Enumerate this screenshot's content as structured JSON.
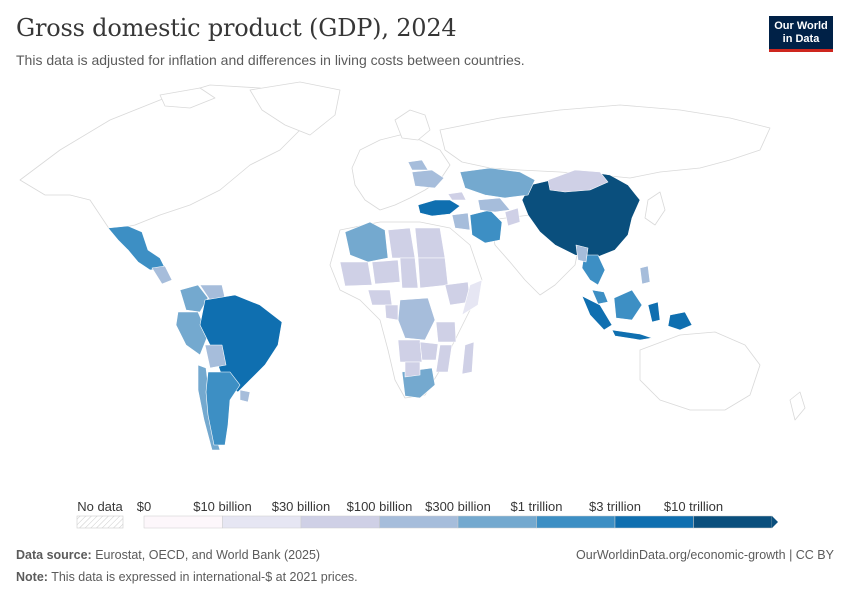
{
  "header": {
    "title": "Gross domestic product (GDP), 2024",
    "subtitle": "This data is adjusted for inflation and differences in living costs between countries.",
    "logo_line1": "Our World",
    "logo_line2": "in Data"
  },
  "legend": {
    "no_data_label": "No data",
    "bins": [
      {
        "label": "$0",
        "color": "#fdf7fb"
      },
      {
        "label": "$10 billion",
        "color": "#e6e6f3"
      },
      {
        "label": "$30 billion",
        "color": "#cfd0e6"
      },
      {
        "label": "$100 billion",
        "color": "#a6bddb"
      },
      {
        "label": "$300 billion",
        "color": "#74a9cf"
      },
      {
        "label": "$1 trillion",
        "color": "#3d8fc4"
      },
      {
        "label": "$3 trillion",
        "color": "#0f6fb0"
      },
      {
        "label": "$10 trillion",
        "color": "#0a4f7d"
      }
    ]
  },
  "colors": {
    "bin0": "#fdf7fb",
    "bin1": "#e6e6f3",
    "bin2": "#cfd0e6",
    "bin3": "#a6bddb",
    "bin4": "#74a9cf",
    "bin5": "#3d8fc4",
    "bin6": "#0f6fb0",
    "bin7": "#0a4f7d",
    "nodata": "#ffffff",
    "border": "#d9d9d9"
  },
  "footer": {
    "source_label": "Data source:",
    "source_text": "Eurostat, OECD, and World Bank (2025)",
    "note_label": "Note:",
    "note_text": "This data is expressed in international-$ at 2021 prices.",
    "url": "OurWorldinData.org/economic-growth | CC BY"
  }
}
